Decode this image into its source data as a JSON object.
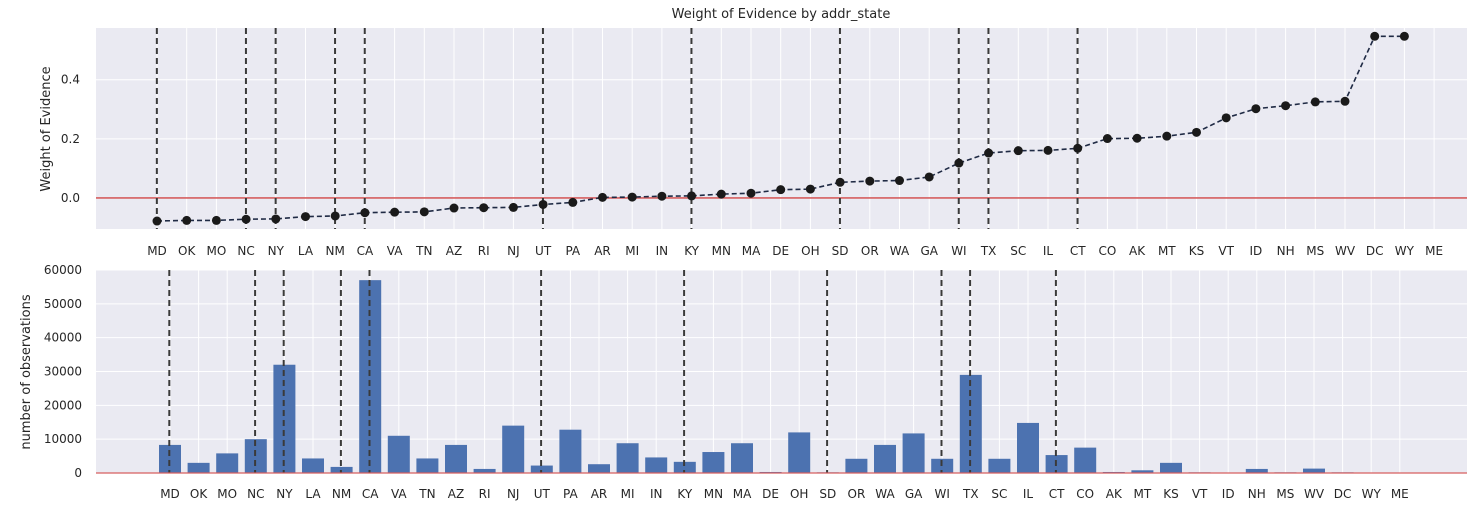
{
  "chart_data": [
    {
      "type": "line",
      "title": "Weight of Evidence by addr_state",
      "xlabel": "",
      "ylabel": "Weight of Evidence",
      "categories": [
        "MD",
        "OK",
        "MO",
        "NC",
        "NY",
        "LA",
        "NM",
        "CA",
        "VA",
        "TN",
        "AZ",
        "RI",
        "NJ",
        "UT",
        "PA",
        "AR",
        "MI",
        "IN",
        "KY",
        "MN",
        "MA",
        "DE",
        "OH",
        "SD",
        "OR",
        "WA",
        "GA",
        "WI",
        "TX",
        "SC",
        "IL",
        "CT",
        "CO",
        "AK",
        "MT",
        "KS",
        "VT",
        "ID",
        "NH",
        "MS",
        "WV",
        "DC",
        "WY",
        "ME"
      ],
      "values": [
        -0.078,
        -0.076,
        -0.076,
        -0.072,
        -0.071,
        -0.063,
        -0.061,
        -0.05,
        -0.048,
        -0.047,
        -0.034,
        -0.033,
        -0.032,
        -0.022,
        -0.015,
        0.002,
        0.003,
        0.006,
        0.007,
        0.013,
        0.016,
        0.028,
        0.03,
        0.053,
        0.057,
        0.059,
        0.071,
        0.118,
        0.152,
        0.16,
        0.161,
        0.168,
        0.201,
        0.202,
        0.209,
        0.222,
        0.271,
        0.302,
        0.312,
        0.325,
        0.327,
        0.547,
        0.547,
        null
      ],
      "yticks": [
        0.0,
        0.2,
        0.4
      ],
      "ytick_labels": [
        "0.0",
        "0.2",
        "0.4"
      ],
      "ylim": [
        -0.105,
        0.575
      ],
      "reference_line": {
        "y": 0,
        "color": "#d65f5f"
      },
      "boundary_lines_after": [
        "MD",
        "NC",
        "NY",
        "NM",
        "CA",
        "UT",
        "KY",
        "SD",
        "WI",
        "TX",
        "CT"
      ],
      "line_color": "#1f2a44",
      "marker_color": "#1a1a1a",
      "grid": true
    },
    {
      "type": "bar",
      "title": "",
      "xlabel": "",
      "ylabel": "number of observations",
      "categories": [
        "MD",
        "OK",
        "MO",
        "NC",
        "NY",
        "LA",
        "NM",
        "CA",
        "VA",
        "TN",
        "AZ",
        "RI",
        "NJ",
        "UT",
        "PA",
        "AR",
        "MI",
        "IN",
        "KY",
        "MN",
        "MA",
        "DE",
        "OH",
        "SD",
        "OR",
        "WA",
        "GA",
        "WI",
        "TX",
        "SC",
        "IL",
        "CT",
        "CO",
        "AK",
        "MT",
        "KS",
        "VT",
        "ID",
        "NH",
        "MS",
        "WV",
        "DC",
        "WY",
        "ME"
      ],
      "values": [
        8300,
        3000,
        5800,
        10000,
        32000,
        4300,
        1800,
        57000,
        11000,
        4300,
        8300,
        1200,
        14000,
        2200,
        12800,
        2600,
        8800,
        4600,
        3300,
        6200,
        8800,
        300,
        12000,
        200,
        4200,
        8300,
        11700,
        4200,
        29000,
        4200,
        14800,
        5300,
        7500,
        300,
        800,
        3000,
        200,
        100,
        1200,
        200,
        1300,
        200,
        100,
        50
      ],
      "yticks": [
        0,
        10000,
        20000,
        30000,
        40000,
        50000,
        60000
      ],
      "ytick_labels": [
        "0",
        "10000",
        "20000",
        "30000",
        "40000",
        "50000",
        "60000"
      ],
      "ylim": [
        0,
        60000
      ],
      "reference_line": {
        "y": 0,
        "color": "#d65f5f"
      },
      "boundary_lines_after": [
        "MD",
        "NC",
        "NY",
        "NM",
        "CA",
        "UT",
        "KY",
        "SD",
        "WI",
        "TX",
        "CT"
      ],
      "bar_color": "#4c72b0",
      "grid": true
    }
  ],
  "style": {
    "axes_background": "#eaeaf2",
    "grid_color": "#ffffff",
    "boundary_line_color": "#3a3a3a"
  }
}
